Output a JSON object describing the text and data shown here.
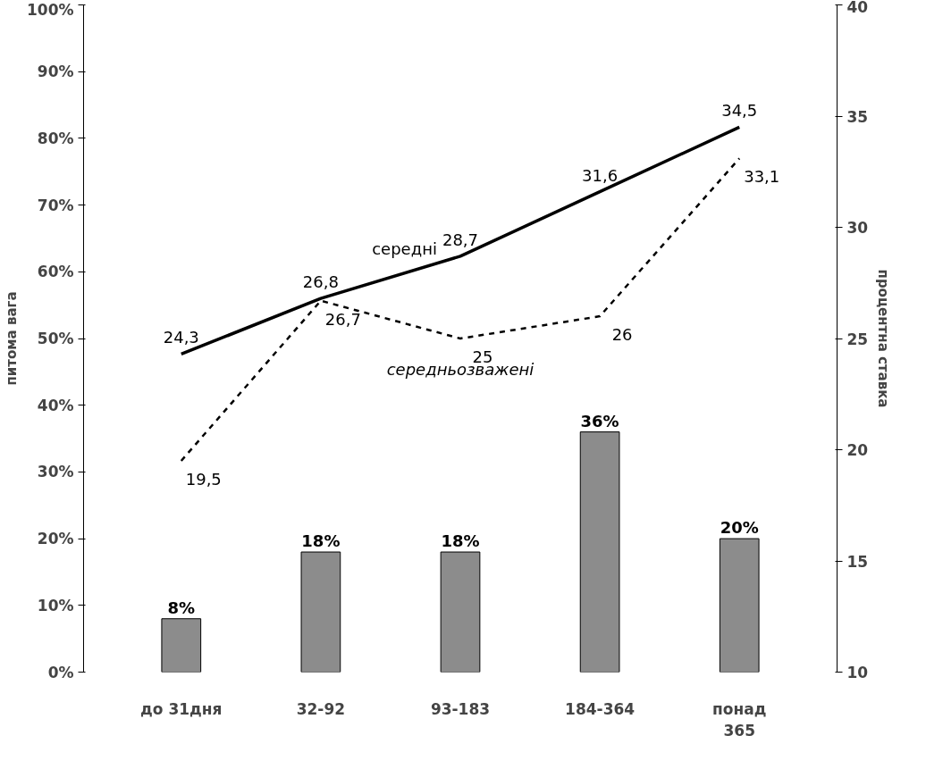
{
  "chart_data": {
    "type": "bar",
    "ylabel": "питома вага",
    "y2label": "процентна ставка",
    "categories": [
      "до 31дня",
      "32-92",
      "93-183",
      "184-364",
      "понад\n365"
    ],
    "ylim": [
      0,
      100
    ],
    "yticks": [
      {
        "value": 0,
        "label": "0%"
      },
      {
        "value": 10,
        "label": "10%"
      },
      {
        "value": 20,
        "label": "20%"
      },
      {
        "value": 30,
        "label": "30%"
      },
      {
        "value": 40,
        "label": "40%"
      },
      {
        "value": 50,
        "label": "50%"
      },
      {
        "value": 60,
        "label": "60%"
      },
      {
        "value": 70,
        "label": "70%"
      },
      {
        "value": 80,
        "label": "80%"
      },
      {
        "value": 90,
        "label": "90%"
      },
      {
        "value": 100,
        "label": "100%"
      }
    ],
    "y2lim": [
      10,
      40
    ],
    "y2ticks": [
      10,
      15,
      20,
      25,
      30,
      35,
      40
    ],
    "grid": false,
    "series": [
      {
        "color": "#8c8c8c",
        "values": [
          8,
          18,
          18,
          36,
          20
        ],
        "value_labels": [
          "8%",
          "18%",
          "18%",
          "36%",
          "20%"
        ]
      },
      {
        "type": "line",
        "name": "середні",
        "axis": "y2",
        "color": "#000000",
        "line_style": "solid",
        "values": [
          24.3,
          26.8,
          28.7,
          31.6,
          34.5
        ],
        "value_labels": [
          "24,3",
          "26,8",
          "28,7",
          "31,6",
          "34,5"
        ]
      },
      {
        "type": "line",
        "name": "середньозважені",
        "axis": "y2",
        "color": "#000000",
        "line_style": "dashed",
        "values": [
          19.5,
          26.7,
          25,
          26,
          33.1
        ],
        "value_labels": [
          "19,5",
          "26,7",
          "25",
          "26",
          "33,1"
        ]
      }
    ]
  }
}
